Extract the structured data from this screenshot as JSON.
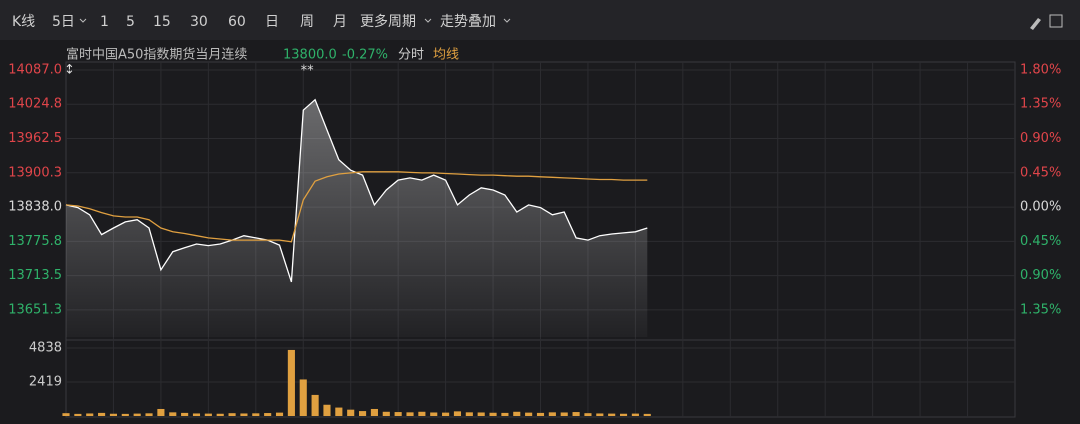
{
  "toolbar": {
    "items": [
      "K线",
      "5日",
      "1",
      "5",
      "15",
      "30",
      "60",
      "日",
      "周",
      "月",
      "更多周期",
      "走势叠加"
    ]
  },
  "header": {
    "instrument": "富时中国A50指数期货当月连续",
    "price": "13800.0",
    "change": "-0.27%",
    "mode": "分时",
    "average": "均线"
  },
  "chart_data": [
    {
      "type": "line",
      "annotation": "**",
      "x": [
        0,
        1,
        2,
        3,
        4,
        5,
        6,
        7,
        8,
        9,
        10,
        11,
        12,
        13,
        14,
        15,
        16,
        17,
        18,
        19,
        20,
        21,
        22,
        23,
        24,
        25,
        26,
        27,
        28,
        29,
        30,
        31,
        32,
        33,
        34,
        35,
        36,
        37,
        38,
        39,
        40,
        41,
        42,
        43,
        44,
        45,
        46,
        47,
        48,
        49
      ],
      "xlim": [
        0,
        80
      ],
      "ylim": [
        13602,
        14101.5
      ],
      "yticks": [
        {
          "value": 14087,
          "label": "14087.0"
        },
        14024.8,
        13962.5,
        13900.3,
        {
          "value": 13838,
          "label": "13838.0"
        },
        13775.8,
        13713.5,
        13651.3
      ],
      "y2lim": [
        -1.705,
        1.904
      ],
      "y2ticks": [
        {
          "value": 1.8,
          "label": "1.80%"
        },
        {
          "value": 1.35,
          "label": "1.35%"
        },
        {
          "value": 0.9,
          "label": "0.90%"
        },
        {
          "value": 0.45,
          "label": "0.45%"
        },
        {
          "value": 0,
          "label": "0.00%"
        },
        {
          "value": -0.45,
          "label": "0.45%"
        },
        {
          "value": -0.9,
          "label": "0.90%"
        },
        {
          "value": -1.35,
          "label": "1.35%"
        }
      ],
      "grid": true,
      "series": [
        {
          "name": "分时",
          "color": "#ffffff",
          "values": [
            13842,
            13837,
            13824,
            13788,
            13800,
            13811,
            13815,
            13800,
            13724,
            13757,
            13764,
            13771,
            13768,
            13771,
            13778,
            13786,
            13782,
            13778,
            13769,
            13702,
            14014,
            14033,
            13978,
            13924,
            13905,
            13896,
            13842,
            13869,
            13887,
            13891,
            13887,
            13896,
            13887,
            13842,
            13860,
            13873,
            13869,
            13860,
            13829,
            13842,
            13837,
            13824,
            13829,
            13782,
            13778,
            13786,
            13789,
            13791,
            13793,
            13800
          ]
        },
        {
          "name": "均线",
          "color": "#e0a040",
          "values": [
            13842,
            13840,
            13835,
            13828,
            13822,
            13820,
            13820,
            13815,
            13800,
            13793,
            13790,
            13786,
            13782,
            13780,
            13778,
            13778,
            13778,
            13778,
            13778,
            13775,
            13851,
            13885,
            13893,
            13898,
            13900,
            13902,
            13902,
            13902,
            13902,
            13901,
            13900,
            13900,
            13899,
            13898,
            13897,
            13896,
            13896,
            13895,
            13894,
            13894,
            13893,
            13892,
            13891,
            13890,
            13889,
            13888,
            13888,
            13887,
            13887,
            13887
          ]
        }
      ]
    },
    {
      "type": "bar",
      "color": "#e0a040",
      "x": [
        0,
        1,
        2,
        3,
        4,
        5,
        6,
        7,
        8,
        9,
        10,
        11,
        12,
        13,
        14,
        15,
        16,
        17,
        18,
        19,
        20,
        21,
        22,
        23,
        24,
        25,
        26,
        27,
        28,
        29,
        30,
        31,
        32,
        33,
        34,
        35,
        36,
        37,
        38,
        39,
        40,
        41,
        42,
        43,
        44,
        45,
        46,
        47,
        48,
        49
      ],
      "xlim": [
        0,
        80
      ],
      "ylim": [
        0,
        4838
      ],
      "yticks": [
        4838,
        2419
      ],
      "values": [
        200,
        150,
        180,
        220,
        160,
        150,
        170,
        190,
        500,
        260,
        220,
        180,
        170,
        160,
        200,
        180,
        190,
        210,
        240,
        4700,
        2600,
        1500,
        800,
        600,
        450,
        350,
        500,
        300,
        280,
        260,
        300,
        250,
        240,
        330,
        260,
        250,
        230,
        220,
        300,
        240,
        220,
        260,
        250,
        280,
        200,
        180,
        170,
        160,
        170,
        150
      ]
    }
  ]
}
